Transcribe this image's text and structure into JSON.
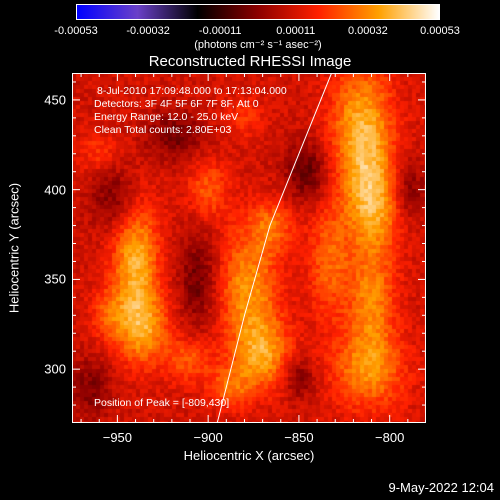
{
  "colorbar": {
    "ticks": [
      "-0.00053",
      "-0.00032",
      "-0.00011",
      "0.00011",
      "0.00032",
      "0.00053"
    ],
    "tick_values": [
      -0.00053,
      -0.00032,
      -0.00011,
      0.00011,
      0.00032,
      0.00053
    ],
    "units": "(photons cm⁻² s⁻¹ asec⁻²)",
    "colors": [
      "#0000ff",
      "#6a40c8",
      "#000000",
      "#8c0000",
      "#ff2000",
      "#ffa000",
      "#ffffff"
    ]
  },
  "chart_data": {
    "type": "heatmap",
    "title": "Reconstructed RHESSI Image",
    "xlabel": "Heliocentric X (arcsec)",
    "ylabel": "Heliocentric Y (arcsec)",
    "xlim": [
      -975,
      -780
    ],
    "ylim": [
      270,
      465
    ],
    "x_ticks": [
      -950,
      -900,
      -850,
      -800
    ],
    "y_ticks": [
      300,
      350,
      400,
      450
    ],
    "x_tick_labels": [
      "−950",
      "−900",
      "−850",
      "−800"
    ],
    "y_tick_labels": [
      "300",
      "350",
      "400",
      "450"
    ],
    "annotations": [
      "8-Jul-2010 17:09:48.000 to 17:13:04.000",
      "Detectors: 3F 4F 5F 6F 7F 8F, Att 0",
      "Energy Range: 12.0 - 25.0 keV",
      "Clean     Total counts: 2.80E+03"
    ],
    "peak_label": "Position of Peak = [-809,430]",
    "peak": [
      -809,
      430
    ],
    "limb": [
      [
        -895,
        270
      ],
      [
        -880,
        330
      ],
      [
        -866,
        380
      ],
      [
        -850,
        420
      ],
      [
        -832,
        465
      ]
    ],
    "blobs": [
      {
        "x": -815,
        "y": 430,
        "sx": 12,
        "sy": 28,
        "a": 1.0
      },
      {
        "x": -808,
        "y": 390,
        "sx": 10,
        "sy": 18,
        "a": 0.75
      },
      {
        "x": -810,
        "y": 340,
        "sx": 9,
        "sy": 20,
        "a": 0.7
      },
      {
        "x": -812,
        "y": 300,
        "sx": 14,
        "sy": 16,
        "a": 0.75
      },
      {
        "x": -833,
        "y": 360,
        "sx": 8,
        "sy": 22,
        "a": 0.55
      },
      {
        "x": -940,
        "y": 360,
        "sx": 9,
        "sy": 26,
        "a": 0.95
      },
      {
        "x": -935,
        "y": 322,
        "sx": 10,
        "sy": 14,
        "a": 0.7
      },
      {
        "x": -955,
        "y": 330,
        "sx": 7,
        "sy": 10,
        "a": 0.45
      },
      {
        "x": -878,
        "y": 345,
        "sx": 12,
        "sy": 22,
        "a": 0.8
      },
      {
        "x": -870,
        "y": 308,
        "sx": 11,
        "sy": 14,
        "a": 0.8
      },
      {
        "x": -865,
        "y": 380,
        "sx": 9,
        "sy": 10,
        "a": 0.55
      },
      {
        "x": -900,
        "y": 400,
        "sx": 8,
        "sy": 12,
        "a": 0.5
      },
      {
        "x": -910,
        "y": 305,
        "sx": 9,
        "sy": 9,
        "a": 0.5
      },
      {
        "x": -888,
        "y": 290,
        "sx": 8,
        "sy": 8,
        "a": 0.55
      },
      {
        "x": -960,
        "y": 420,
        "sx": 8,
        "sy": 8,
        "a": 0.35
      },
      {
        "x": -880,
        "y": 440,
        "sx": 8,
        "sy": 8,
        "a": 0.3
      }
    ],
    "cold_spots": [
      {
        "x": -950,
        "y": 395,
        "sx": 10,
        "sy": 14,
        "a": 0.5
      },
      {
        "x": -918,
        "y": 430,
        "sx": 12,
        "sy": 10,
        "a": 0.45
      },
      {
        "x": -905,
        "y": 350,
        "sx": 8,
        "sy": 20,
        "a": 0.5
      },
      {
        "x": -845,
        "y": 410,
        "sx": 9,
        "sy": 12,
        "a": 0.55
      },
      {
        "x": -790,
        "y": 400,
        "sx": 7,
        "sy": 12,
        "a": 0.45
      },
      {
        "x": -965,
        "y": 290,
        "sx": 8,
        "sy": 12,
        "a": 0.4
      },
      {
        "x": -850,
        "y": 295,
        "sx": 6,
        "sy": 8,
        "a": 0.45
      }
    ]
  },
  "footer": {
    "date": "9-May-2022 12:04"
  }
}
